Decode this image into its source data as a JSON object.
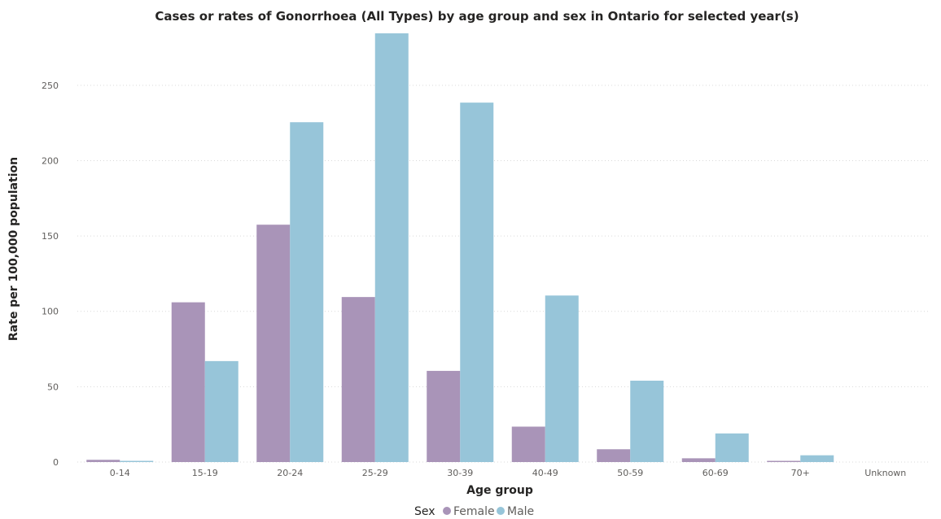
{
  "chart_data": {
    "type": "bar",
    "title": "Cases or rates of Gonorrhoea (All Types) by age group and sex in Ontario for selected year(s)",
    "xlabel": "Age group",
    "ylabel": "Rate per 100,000 population",
    "categories": [
      "0-14",
      "15-19",
      "20-24",
      "25-29",
      "30-39",
      "40-49",
      "50-59",
      "60-69",
      "70+",
      "Unknown"
    ],
    "series": [
      {
        "name": "Female",
        "color": "#a994b8",
        "values": [
          1.5,
          106,
          157.5,
          109.5,
          60.5,
          23.5,
          8.5,
          2.5,
          0.8,
          0
        ]
      },
      {
        "name": "Male",
        "color": "#97c5d9",
        "values": [
          0.8,
          67,
          225.5,
          284.5,
          238.5,
          110.5,
          54,
          19,
          4.5,
          0
        ]
      }
    ],
    "ylim": [
      0,
      285
    ],
    "yticks": [
      0,
      50,
      100,
      150,
      200,
      250
    ],
    "grid": true,
    "legend": {
      "title": "Sex",
      "placement": "bottom"
    }
  }
}
